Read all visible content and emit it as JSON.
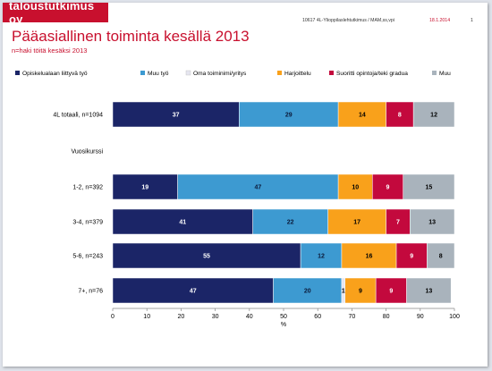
{
  "header": {
    "logo": "taloustutkimus oy",
    "project": "10617 4L-Ylioppilaslehtutkimus / MAM,ss,vpi",
    "date": "18.1.2014",
    "page": "1"
  },
  "slide": {
    "title": "Pääasiallinen toiminta kesällä 2013",
    "subtitle": "n=haki töitä kesäksi 2013"
  },
  "chart_data": {
    "type": "bar",
    "orientation": "horizontal",
    "stacked": true,
    "categories": [
      "4L totaali, n=1094",
      "Vuosikurssi",
      "1-2, n=392",
      "3-4, n=379",
      "5-6, n=243",
      "7+, n=76"
    ],
    "series": [
      {
        "name": "Opiskelualaan liittyvä työ",
        "color": "#1b2567",
        "values": [
          37,
          null,
          19,
          41,
          55,
          47
        ]
      },
      {
        "name": "Muu työ",
        "color": "#3d9ad1",
        "values": [
          29,
          null,
          47,
          22,
          12,
          20
        ]
      },
      {
        "name": "Oma toiminimi/yritys",
        "color": "#e6e6f0",
        "values": [
          0,
          null,
          0,
          0,
          0,
          1
        ]
      },
      {
        "name": "Harjoittelu",
        "color": "#f9a11b",
        "values": [
          14,
          null,
          10,
          17,
          16,
          9
        ]
      },
      {
        "name": "Suoritti opintoja/teki gradua",
        "color": "#c3093d",
        "values": [
          8,
          null,
          9,
          7,
          9,
          9
        ]
      },
      {
        "name": "Muu",
        "color": "#a9b3bc",
        "values": [
          12,
          null,
          15,
          13,
          8,
          13
        ]
      }
    ],
    "xlabel": "%",
    "xlim": [
      0,
      100
    ],
    "xticks": [
      0,
      10,
      20,
      30,
      40,
      50,
      60,
      70,
      80,
      90,
      100
    ],
    "legend_position": "top",
    "grid": false
  }
}
